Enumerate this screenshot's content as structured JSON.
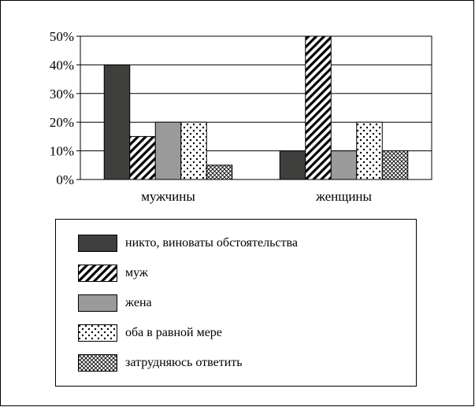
{
  "chart_data": {
    "type": "bar",
    "categories": [
      "мужчины",
      "женщины"
    ],
    "series": [
      {
        "name": "никто, виноваты обстоятельства",
        "values": [
          40,
          10
        ],
        "fill": "dark",
        "color": "#3f3f3d"
      },
      {
        "name": "муж",
        "values": [
          15,
          50
        ],
        "fill": "diagonal-hatch",
        "color": "#000000"
      },
      {
        "name": "жена",
        "values": [
          20,
          10
        ],
        "fill": "gray",
        "color": "#9a9a9a"
      },
      {
        "name": "оба в равной мере",
        "values": [
          20,
          20
        ],
        "fill": "dots",
        "color": "#000000"
      },
      {
        "name": "затрудняюсь ответить",
        "values": [
          5,
          10
        ],
        "fill": "crosshatch",
        "color": "#000000"
      }
    ],
    "yticks": [
      "0%",
      "10%",
      "20%",
      "30%",
      "40%",
      "50%"
    ],
    "ylim": [
      0,
      50
    ],
    "grid": true,
    "legend_position": "bottom",
    "title": "",
    "xlabel": "",
    "ylabel": ""
  }
}
